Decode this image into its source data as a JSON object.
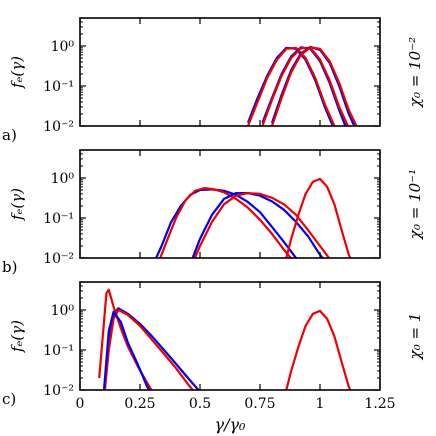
{
  "figure": {
    "xlabel": "γ/γ₀",
    "x_ticks": [
      "0",
      "0.25",
      "0.5",
      "0.75",
      "1",
      "1.25"
    ],
    "y_ticks": [
      "10⁰",
      "10⁻¹",
      "10⁻²"
    ]
  },
  "chart_data": [
    {
      "type": "line",
      "panel_label": "a)",
      "ylabel": "fₑ(γ)",
      "side_label": "χ₀ = 10⁻²",
      "x_range": [
        0,
        1.25
      ],
      "y_range_log10": [
        -2,
        0.7
      ],
      "y_scale": "log",
      "colors": {
        "blue": "#0000ee",
        "red": "#ee0000"
      },
      "series": [
        {
          "color": "blue",
          "x": [
            0.7,
            0.74,
            0.78,
            0.82,
            0.86,
            0.9,
            0.94,
            0.98,
            1.02,
            1.06
          ],
          "y": [
            0.012,
            0.05,
            0.18,
            0.5,
            0.9,
            0.85,
            0.45,
            0.14,
            0.03,
            0.008
          ]
        },
        {
          "color": "red",
          "x": [
            0.7,
            0.74,
            0.78,
            0.82,
            0.86,
            0.9,
            0.94,
            0.98,
            1.02,
            1.06,
            1.08
          ],
          "y": [
            0.01,
            0.04,
            0.16,
            0.45,
            0.85,
            0.9,
            0.5,
            0.16,
            0.035,
            0.01,
            0.005
          ]
        },
        {
          "color": "blue",
          "x": [
            0.76,
            0.8,
            0.84,
            0.88,
            0.92,
            0.96,
            1.0,
            1.04,
            1.08,
            1.12
          ],
          "y": [
            0.012,
            0.05,
            0.2,
            0.55,
            0.92,
            0.85,
            0.42,
            0.12,
            0.025,
            0.006
          ]
        },
        {
          "color": "red",
          "x": [
            0.76,
            0.8,
            0.84,
            0.88,
            0.92,
            0.96,
            1.0,
            1.04,
            1.08,
            1.12,
            1.14
          ],
          "y": [
            0.01,
            0.045,
            0.18,
            0.5,
            0.88,
            0.9,
            0.46,
            0.14,
            0.03,
            0.009,
            0.005
          ]
        },
        {
          "color": "blue",
          "x": [
            0.8,
            0.84,
            0.88,
            0.92,
            0.96,
            1.0,
            1.04,
            1.08,
            1.12,
            1.16
          ],
          "y": [
            0.012,
            0.06,
            0.25,
            0.65,
            0.95,
            0.8,
            0.38,
            0.1,
            0.02,
            0.006
          ]
        },
        {
          "color": "red",
          "x": [
            0.8,
            0.84,
            0.88,
            0.92,
            0.96,
            1.0,
            1.04,
            1.08,
            1.12,
            1.16,
            1.18
          ],
          "y": [
            0.01,
            0.05,
            0.22,
            0.6,
            0.92,
            0.85,
            0.42,
            0.12,
            0.025,
            0.008,
            0.005
          ]
        }
      ]
    },
    {
      "type": "line",
      "panel_label": "b)",
      "ylabel": "fₑ(γ)",
      "side_label": "χ₀ = 10⁻¹",
      "x_range": [
        0,
        1.25
      ],
      "y_range_log10": [
        -2,
        0.7
      ],
      "y_scale": "log",
      "colors": {
        "blue": "#0000ee",
        "red": "#ee0000"
      },
      "series": [
        {
          "color": "blue",
          "x": [
            0.3,
            0.34,
            0.38,
            0.42,
            0.46,
            0.5,
            0.55,
            0.6,
            0.65,
            0.7,
            0.75,
            0.8,
            0.85,
            0.9,
            0.93
          ],
          "y": [
            0.006,
            0.02,
            0.08,
            0.2,
            0.38,
            0.5,
            0.52,
            0.48,
            0.38,
            0.25,
            0.14,
            0.06,
            0.025,
            0.01,
            0.005
          ]
        },
        {
          "color": "red",
          "x": [
            0.32,
            0.36,
            0.4,
            0.44,
            0.48,
            0.52,
            0.56,
            0.6,
            0.65,
            0.7,
            0.75,
            0.8,
            0.85,
            0.9,
            0.95
          ],
          "y": [
            0.006,
            0.025,
            0.1,
            0.28,
            0.48,
            0.56,
            0.52,
            0.44,
            0.3,
            0.18,
            0.09,
            0.04,
            0.016,
            0.007,
            0.004
          ]
        },
        {
          "color": "blue",
          "x": [
            0.45,
            0.5,
            0.55,
            0.6,
            0.65,
            0.7,
            0.75,
            0.8,
            0.85,
            0.9,
            0.95,
            1.0,
            1.05
          ],
          "y": [
            0.005,
            0.03,
            0.12,
            0.3,
            0.42,
            0.42,
            0.36,
            0.26,
            0.16,
            0.08,
            0.035,
            0.012,
            0.005
          ]
        },
        {
          "color": "red",
          "x": [
            0.45,
            0.5,
            0.55,
            0.6,
            0.65,
            0.7,
            0.75,
            0.8,
            0.85,
            0.9,
            0.95,
            1.0,
            1.05,
            1.1
          ],
          "y": [
            0.004,
            0.02,
            0.08,
            0.22,
            0.36,
            0.42,
            0.4,
            0.32,
            0.22,
            0.12,
            0.05,
            0.02,
            0.008,
            0.004
          ]
        },
        {
          "color": "red",
          "x": [
            0.85,
            0.88,
            0.91,
            0.94,
            0.97,
            1.0,
            1.03,
            1.06,
            1.09,
            1.12,
            1.15
          ],
          "y": [
            0.006,
            0.03,
            0.12,
            0.4,
            0.8,
            0.95,
            0.6,
            0.22,
            0.05,
            0.012,
            0.005
          ]
        }
      ]
    },
    {
      "type": "line",
      "panel_label": "c)",
      "ylabel": "fₑ(γ)",
      "side_label": "χ₀ = 1",
      "x_range": [
        0,
        1.25
      ],
      "y_range_log10": [
        -2,
        0.7
      ],
      "y_scale": "log",
      "colors": {
        "blue": "#0000ee",
        "red": "#ee0000"
      },
      "series": [
        {
          "color": "blue",
          "x": [
            0.1,
            0.12,
            0.14,
            0.16,
            0.2,
            0.25,
            0.3,
            0.35,
            0.4,
            0.45,
            0.5,
            0.55
          ],
          "y": [
            0.008,
            0.15,
            0.8,
            1.1,
            0.8,
            0.45,
            0.22,
            0.1,
            0.045,
            0.02,
            0.009,
            0.004
          ]
        },
        {
          "color": "red",
          "x": [
            0.1,
            0.12,
            0.14,
            0.16,
            0.2,
            0.25,
            0.3,
            0.35,
            0.4,
            0.45,
            0.5
          ],
          "y": [
            0.006,
            0.1,
            0.6,
            1.0,
            0.75,
            0.4,
            0.18,
            0.08,
            0.035,
            0.014,
            0.006
          ]
        },
        {
          "color": "red",
          "x": [
            0.08,
            0.1,
            0.11,
            0.12,
            0.14,
            0.17,
            0.2,
            0.24,
            0.28,
            0.32,
            0.36
          ],
          "y": [
            0.02,
            0.5,
            2.6,
            3.2,
            1.2,
            0.35,
            0.12,
            0.04,
            0.015,
            0.006,
            0.004
          ]
        },
        {
          "color": "blue",
          "x": [
            0.1,
            0.12,
            0.14,
            0.17,
            0.2,
            0.24,
            0.28,
            0.32
          ],
          "y": [
            0.01,
            0.3,
            0.9,
            0.5,
            0.15,
            0.045,
            0.012,
            0.005
          ]
        },
        {
          "color": "red",
          "x": [
            0.85,
            0.88,
            0.91,
            0.94,
            0.97,
            1.0,
            1.03,
            1.06,
            1.09,
            1.12,
            1.15
          ],
          "y": [
            0.006,
            0.03,
            0.12,
            0.4,
            0.8,
            0.95,
            0.6,
            0.22,
            0.05,
            0.012,
            0.005
          ]
        }
      ]
    }
  ]
}
